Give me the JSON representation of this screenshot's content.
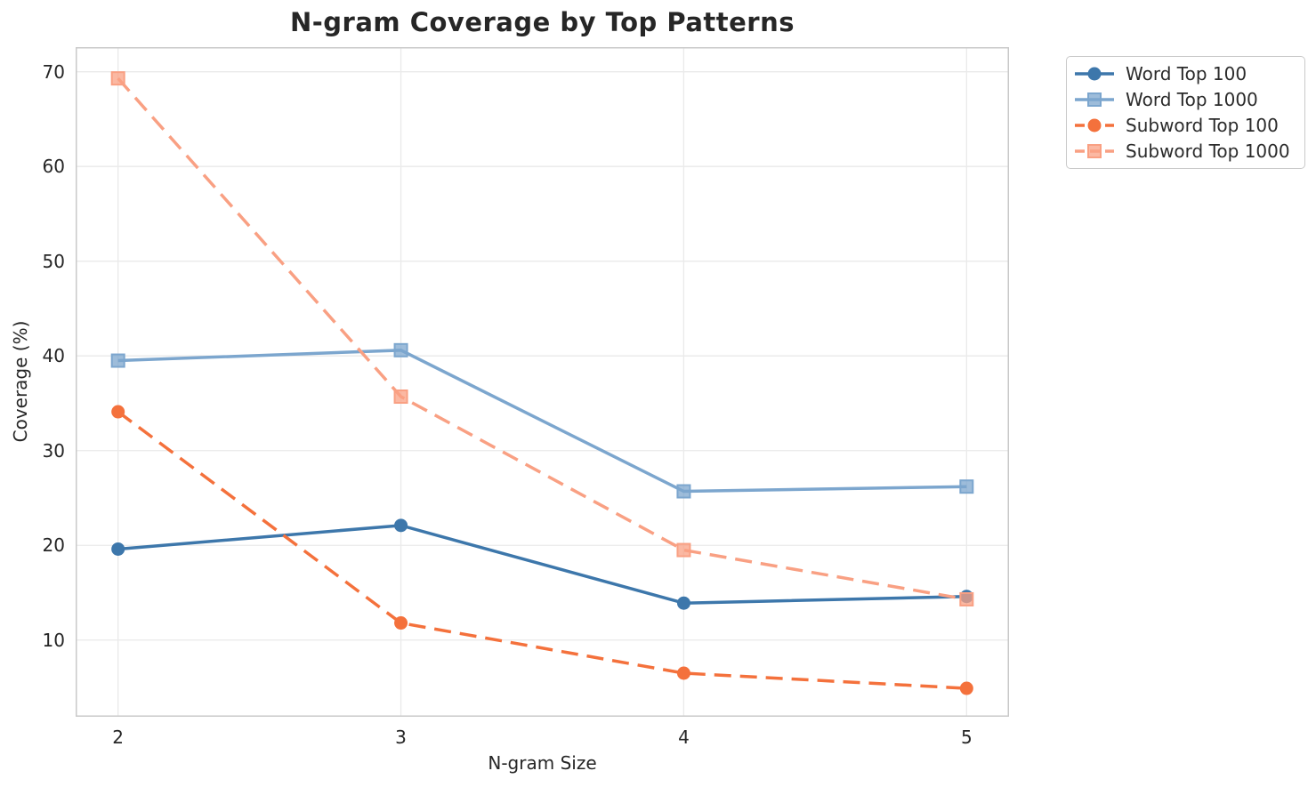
{
  "chart_data": {
    "type": "line",
    "title": "N-gram Coverage by Top Patterns",
    "xlabel": "N-gram Size",
    "ylabel": "Coverage (%)",
    "x": [
      2,
      3,
      4,
      5
    ],
    "xtick_labels": [
      "2",
      "3",
      "4",
      "5"
    ],
    "yticks": [
      10,
      20,
      30,
      40,
      50,
      60,
      70
    ],
    "ytick_labels": [
      "10",
      "20",
      "30",
      "40",
      "50",
      "60",
      "70"
    ],
    "xlim": [
      1.85,
      5.15
    ],
    "ylim": [
      1.9,
      72.6
    ],
    "grid": true,
    "legend_position": "outside upper right",
    "series": [
      {
        "name": "Word Top 100",
        "values": [
          19.6,
          22.1,
          13.9,
          14.6
        ],
        "color": "#3d77ab",
        "style": "solid",
        "marker": "circle"
      },
      {
        "name": "Word Top 1000",
        "values": [
          39.5,
          40.6,
          25.7,
          26.2
        ],
        "color": "#7ca6ce",
        "style": "solid",
        "marker": "square"
      },
      {
        "name": "Subword Top 100",
        "values": [
          34.1,
          11.8,
          6.5,
          4.9
        ],
        "color": "#f4713c",
        "style": "dashed",
        "marker": "circle"
      },
      {
        "name": "Subword Top 1000",
        "values": [
          69.3,
          35.7,
          19.5,
          14.3
        ],
        "color": "#f9a083",
        "style": "dashed",
        "marker": "square"
      }
    ],
    "colors": {
      "grid": "#eaeaea",
      "spine": "#c9c9c9",
      "text": "#262626",
      "background": "#ffffff"
    }
  }
}
